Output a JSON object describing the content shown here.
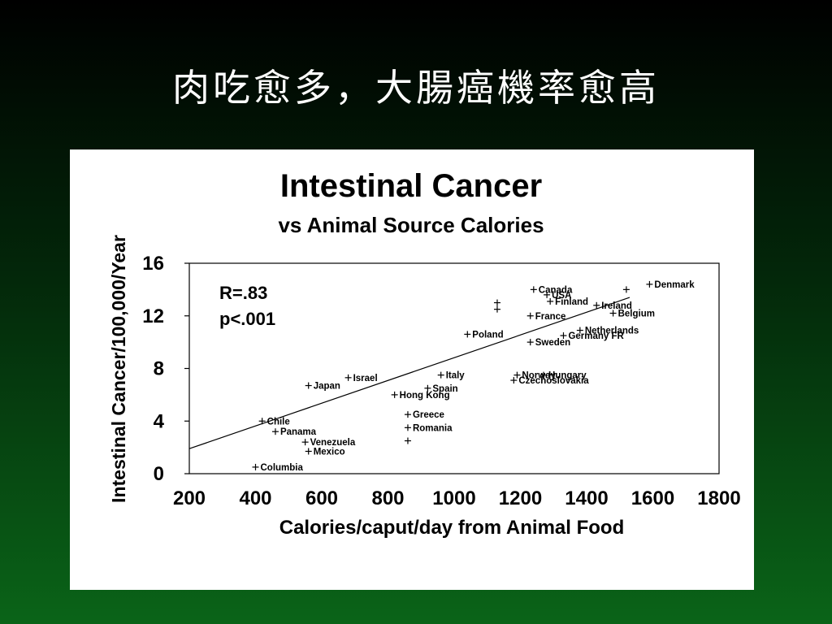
{
  "slide": {
    "title": "肉吃愈多，大腸癌機率愈高"
  },
  "colors": {
    "background_top": "#000000",
    "background_bottom": "#0a6418",
    "title": "#ffffff",
    "card": "#ffffff",
    "ink": "#000000"
  },
  "chart_data": {
    "type": "scatter",
    "title": "Intestinal Cancer",
    "subtitle": "vs Animal Source Calories",
    "xlabel": "Calories/caput/day from Animal Food",
    "ylabel": "Intestinal Cancer/100,000/Year",
    "xlim": [
      200,
      1800
    ],
    "ylim": [
      0,
      16
    ],
    "xticks": [
      "200",
      "400",
      "600",
      "800",
      "1000",
      "1200",
      "1400",
      "1600",
      "1800"
    ],
    "yticks": [
      "0",
      "4",
      "8",
      "12",
      "16"
    ],
    "grid": false,
    "stats": [
      "R=.83",
      "p<.001"
    ],
    "trend_line": {
      "x": [
        200,
        1530
      ],
      "y": [
        1.9,
        13.4
      ]
    },
    "points": [
      {
        "x": 1590,
        "y": 14.4,
        "label": "Denmark"
      },
      {
        "x": 1520,
        "y": 14.0,
        "label": ""
      },
      {
        "x": 1240,
        "y": 14.0,
        "label": "Canada"
      },
      {
        "x": 1280,
        "y": 13.6,
        "label": "USA"
      },
      {
        "x": 1290,
        "y": 13.1,
        "label": "Finland"
      },
      {
        "x": 1130,
        "y": 13.0,
        "label": ""
      },
      {
        "x": 1130,
        "y": 12.5,
        "label": ""
      },
      {
        "x": 1430,
        "y": 12.8,
        "label": "Ireland"
      },
      {
        "x": 1480,
        "y": 12.2,
        "label": "Belgium"
      },
      {
        "x": 1230,
        "y": 12.0,
        "label": "France"
      },
      {
        "x": 1380,
        "y": 10.9,
        "label": "Netherlands"
      },
      {
        "x": 1330,
        "y": 10.5,
        "label": "Germany FR"
      },
      {
        "x": 1040,
        "y": 10.6,
        "label": "Poland"
      },
      {
        "x": 1230,
        "y": 10.0,
        "label": "Sweden"
      },
      {
        "x": 1190,
        "y": 7.5,
        "label": "Norway"
      },
      {
        "x": 1270,
        "y": 7.5,
        "label": "Hungary"
      },
      {
        "x": 1180,
        "y": 7.1,
        "label": "Czechoslovakia"
      },
      {
        "x": 960,
        "y": 7.5,
        "label": "Italy"
      },
      {
        "x": 920,
        "y": 6.5,
        "label": "Spain"
      },
      {
        "x": 820,
        "y": 6.0,
        "label": "Hong Kong"
      },
      {
        "x": 680,
        "y": 7.3,
        "label": "Israel"
      },
      {
        "x": 560,
        "y": 6.7,
        "label": "Japan"
      },
      {
        "x": 860,
        "y": 4.5,
        "label": "Greece"
      },
      {
        "x": 860,
        "y": 3.5,
        "label": "Romania"
      },
      {
        "x": 860,
        "y": 2.5,
        "label": ""
      },
      {
        "x": 420,
        "y": 4.0,
        "label": "Chile"
      },
      {
        "x": 460,
        "y": 3.2,
        "label": "Panama"
      },
      {
        "x": 550,
        "y": 2.4,
        "label": "Venezuela"
      },
      {
        "x": 560,
        "y": 1.7,
        "label": "Mexico"
      },
      {
        "x": 400,
        "y": 0.5,
        "label": "Columbia"
      }
    ]
  }
}
